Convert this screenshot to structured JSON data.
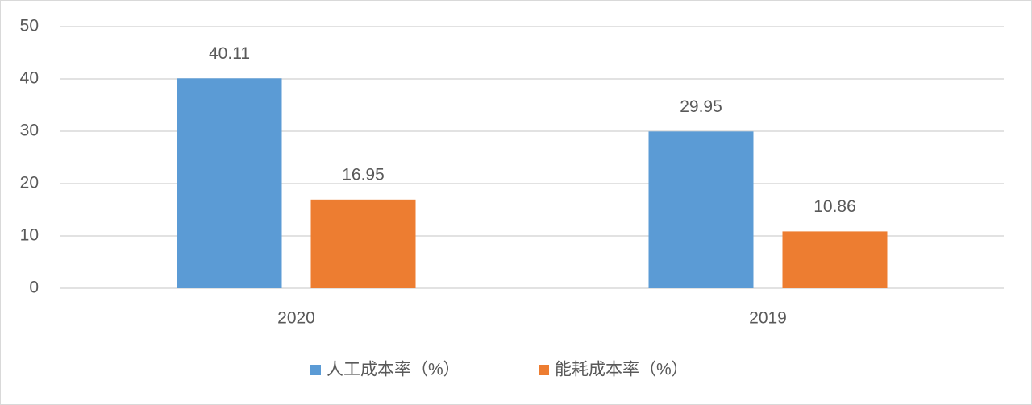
{
  "chart_data": {
    "type": "bar",
    "categories": [
      "2020",
      "2019"
    ],
    "series": [
      {
        "name": "人工成本率（%）",
        "color": "#5b9bd5",
        "values": [
          40.11,
          29.95
        ]
      },
      {
        "name": "能耗成本率（%）",
        "color": "#ed7d31",
        "values": [
          16.95,
          10.86
        ]
      }
    ],
    "ylim": [
      0,
      50
    ],
    "yticks": [
      0,
      10,
      20,
      30,
      40,
      50
    ],
    "grid": true,
    "legend": "bottom"
  }
}
